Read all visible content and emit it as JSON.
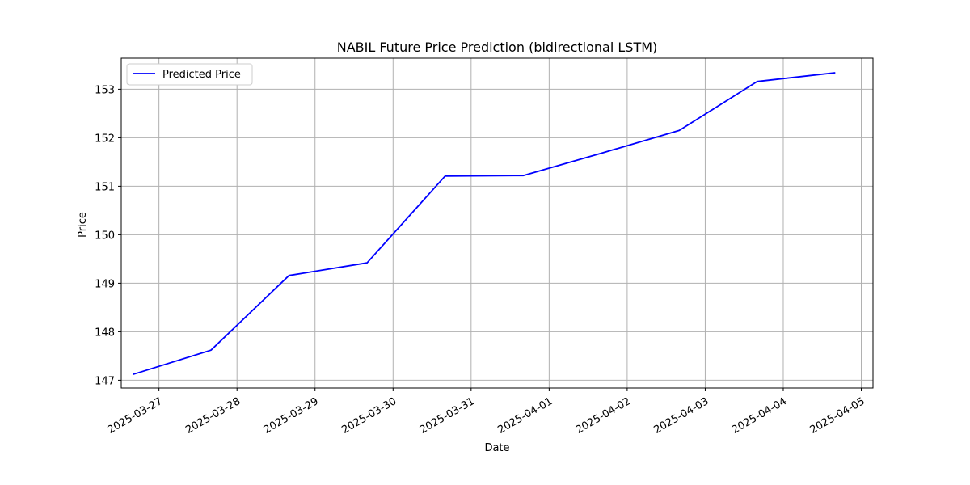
{
  "chart_data": {
    "type": "line",
    "title": "NABIL Future Price Prediction (bidirectional LSTM)",
    "xlabel": "Date",
    "ylabel": "Price",
    "x": [
      "2025-03-26 16:00",
      "2025-03-27 16:00",
      "2025-03-28 16:00",
      "2025-03-29 16:00",
      "2025-03-30 16:00",
      "2025-03-31 16:00",
      "2025-04-01 16:00",
      "2025-04-02 16:00",
      "2025-04-03 16:00",
      "2025-04-04 16:00"
    ],
    "series": [
      {
        "name": "Predicted Price",
        "color": "#0000ff",
        "values": [
          147.12,
          147.62,
          149.16,
          149.42,
          151.21,
          151.22,
          151.68,
          152.15,
          153.16,
          153.34
        ]
      }
    ],
    "xlim": [
      "2025-03-26 12:24",
      "2025-04-05 03:36"
    ],
    "ylim": [
      146.84,
      153.64
    ],
    "x_ticks": [
      "2025-03-27",
      "2025-03-28",
      "2025-03-29",
      "2025-03-30",
      "2025-03-31",
      "2025-04-01",
      "2025-04-02",
      "2025-04-03",
      "2025-04-04",
      "2025-04-05"
    ],
    "y_ticks": [
      147,
      148,
      149,
      150,
      151,
      152,
      153
    ],
    "grid": true,
    "legend_position": "upper-left"
  }
}
